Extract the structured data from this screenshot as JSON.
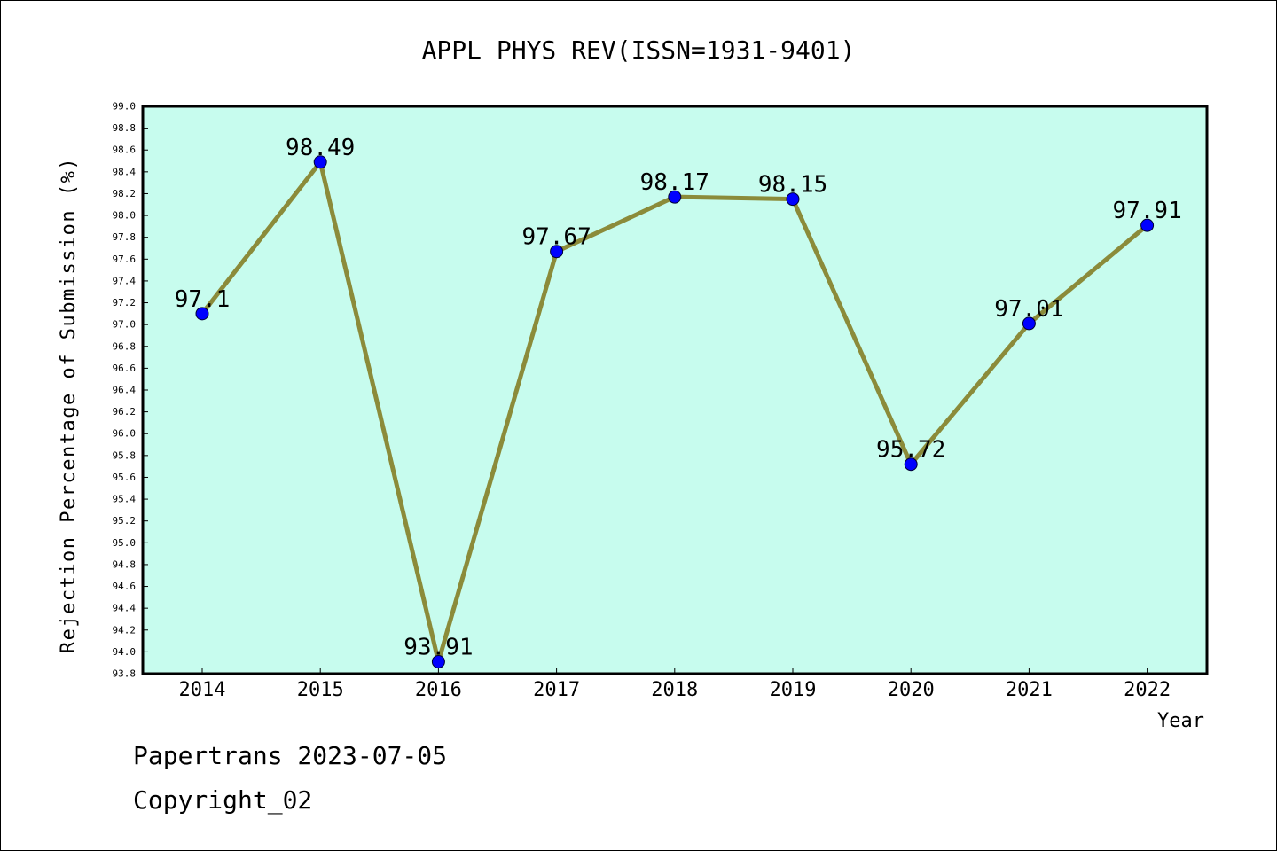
{
  "chart_data": {
    "type": "line",
    "title": "APPL PHYS REV(ISSN=1931-9401)",
    "xlabel": "Year",
    "ylabel": "Rejection Percentage of Submission (%)",
    "categories": [
      "2014",
      "2015",
      "2016",
      "2017",
      "2018",
      "2019",
      "2020",
      "2021",
      "2022"
    ],
    "values": [
      97.1,
      98.49,
      93.91,
      97.67,
      98.17,
      98.15,
      95.72,
      97.01,
      97.91
    ],
    "data_labels": [
      "97.1",
      "98.49",
      "93.91",
      "97.67",
      "98.17",
      "98.15",
      "95.72",
      "97.01",
      "97.91"
    ],
    "ylim": [
      93.8,
      99.0
    ],
    "yticks": [
      "93.8",
      "94.0",
      "94.2",
      "94.4",
      "94.6",
      "94.8",
      "95.0",
      "95.2",
      "95.4",
      "95.6",
      "95.8",
      "96.0",
      "96.2",
      "96.4",
      "96.6",
      "96.8",
      "97.0",
      "97.2",
      "97.4",
      "97.6",
      "97.8",
      "98.0",
      "98.2",
      "98.4",
      "98.6",
      "98.8",
      "99.0"
    ],
    "grid": false,
    "legend": "none",
    "colors": {
      "plot_background": "#c7fcee",
      "line": "#8b8b3a",
      "marker": "#0000ff"
    }
  },
  "footer": {
    "line1": "Papertrans 2023-07-05",
    "line2": "Copyright_02"
  }
}
